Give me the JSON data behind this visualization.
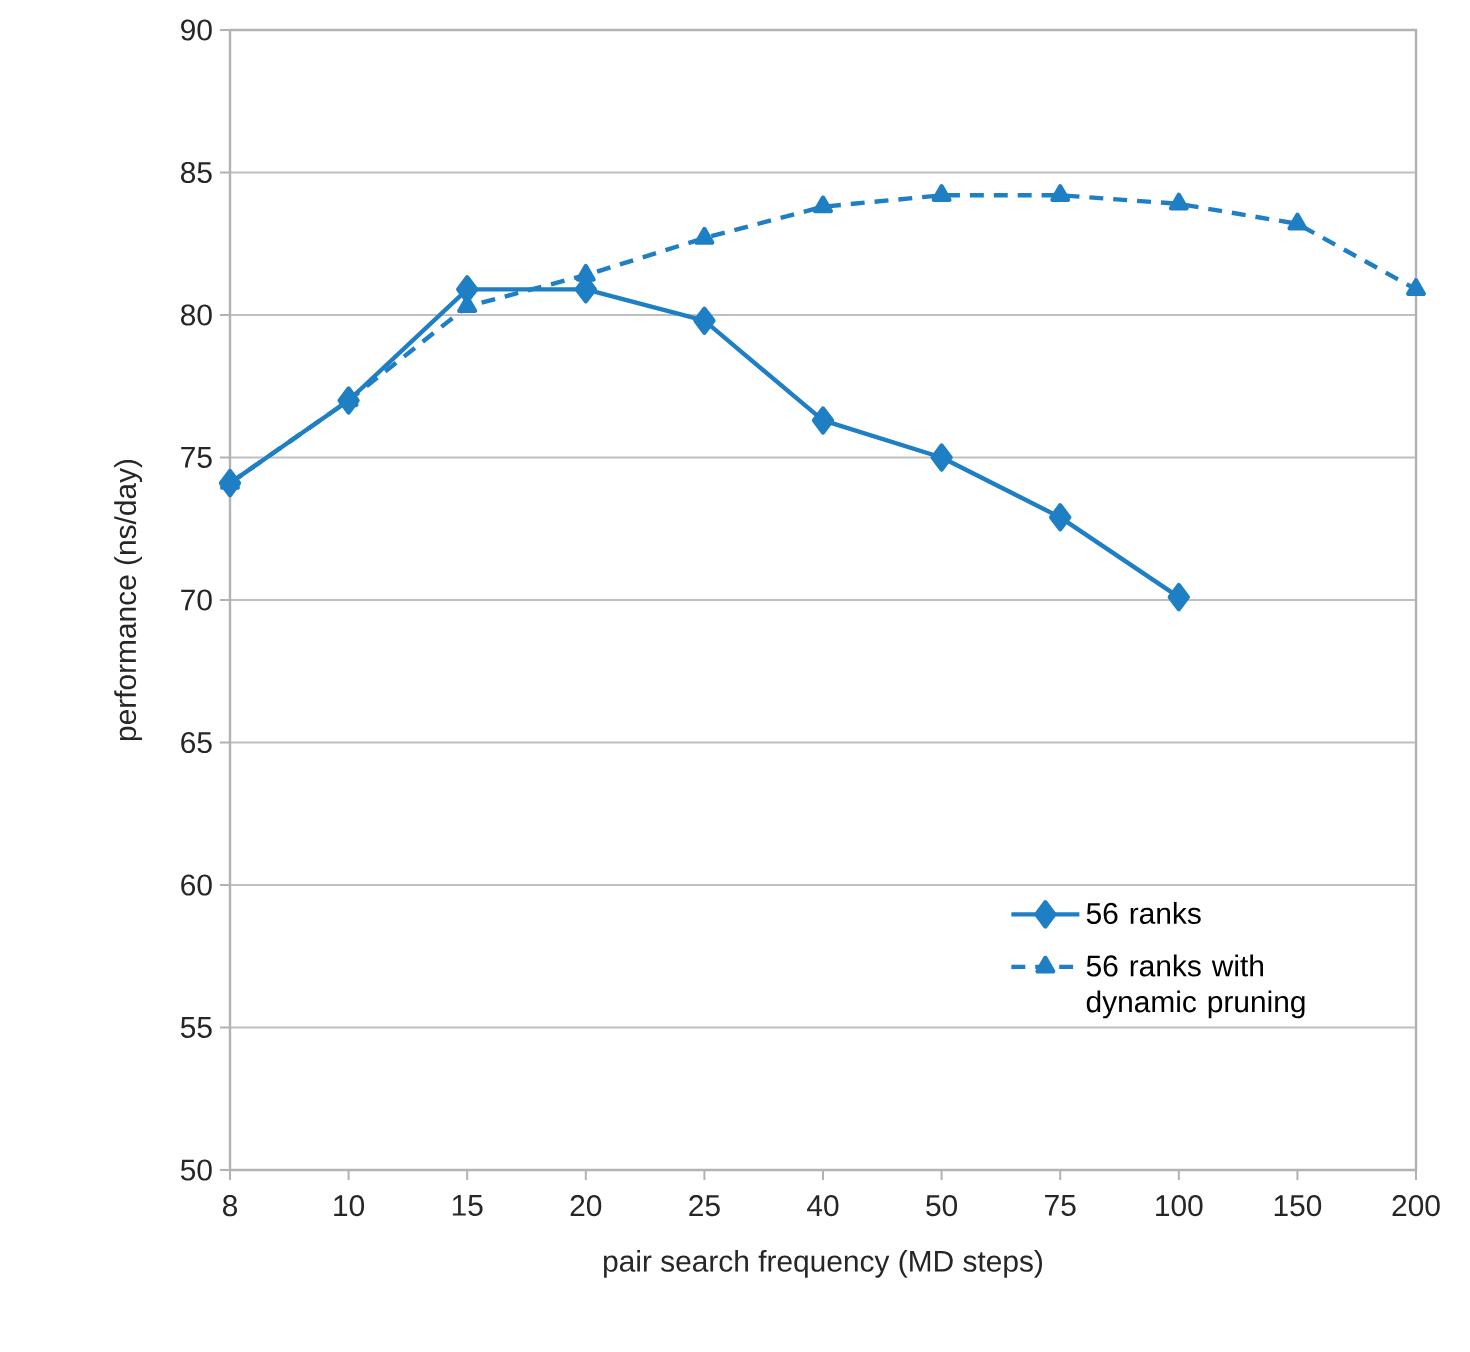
{
  "chart_data": {
    "type": "line",
    "xlabel": "pair search frequency (MD steps)",
    "ylabel": "performance (ns/day)",
    "categories": [
      "8",
      "10",
      "15",
      "20",
      "25",
      "40",
      "50",
      "75",
      "100",
      "150",
      "200"
    ],
    "ylim": [
      50,
      90
    ],
    "yticks": [
      50,
      55,
      60,
      65,
      70,
      75,
      80,
      85,
      90
    ],
    "grid": "y",
    "legend": "bottom right",
    "series": [
      {
        "name": "56 ranks",
        "color": "#1f7fc4",
        "marker": "diamond",
        "line_style": "solid",
        "values": [
          74.1,
          77.0,
          80.9,
          80.9,
          79.8,
          76.3,
          75.0,
          72.9,
          70.1,
          null,
          null
        ]
      },
      {
        "name": "56 ranks with dynamic pruning",
        "color": "#1f7fc4",
        "marker": "triangle",
        "line_style": "dashed",
        "values": [
          74.1,
          77.0,
          80.3,
          81.4,
          82.7,
          83.8,
          84.2,
          84.2,
          83.9,
          83.2,
          80.9
        ]
      }
    ]
  }
}
